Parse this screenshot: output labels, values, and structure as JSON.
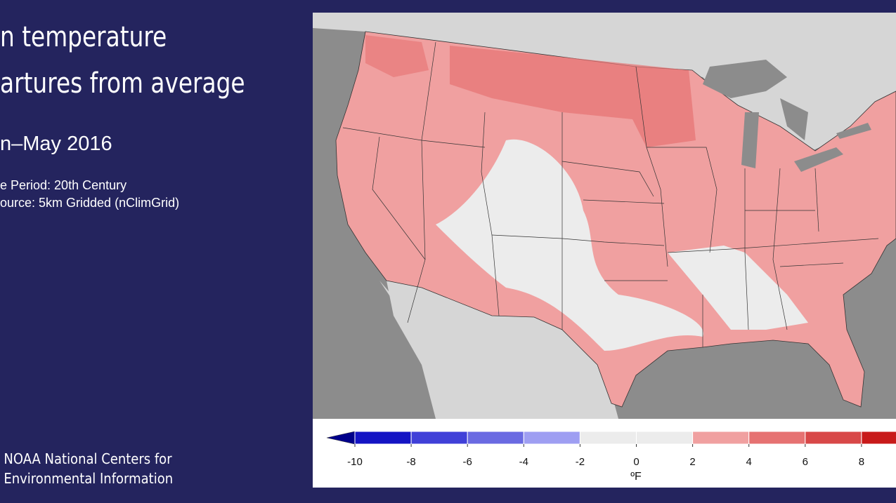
{
  "title": [
    "n temperature",
    "artures from average"
  ],
  "date": "n–May 2016",
  "notes": [
    "e Period: 20th Century",
    "ource: 5km Gridded (nClimGrid)"
  ],
  "credit": [
    "NOAA National Centers for",
    "Environmental Information"
  ],
  "legend": {
    "ticks": [
      -10,
      -8,
      -6,
      -4,
      -2,
      0,
      2,
      4,
      6,
      8
    ],
    "xlim": [
      -10,
      10
    ],
    "step": 2,
    "below_color": "#00008b",
    "colors": [
      "#1414c4",
      "#4040d8",
      "#6a6ae2",
      "#9e9ef2",
      "#ececec",
      "#ececec",
      "#f0a0a0",
      "#e67272",
      "#d84848",
      "#c81a1a"
    ],
    "unit": "ºF"
  }
}
